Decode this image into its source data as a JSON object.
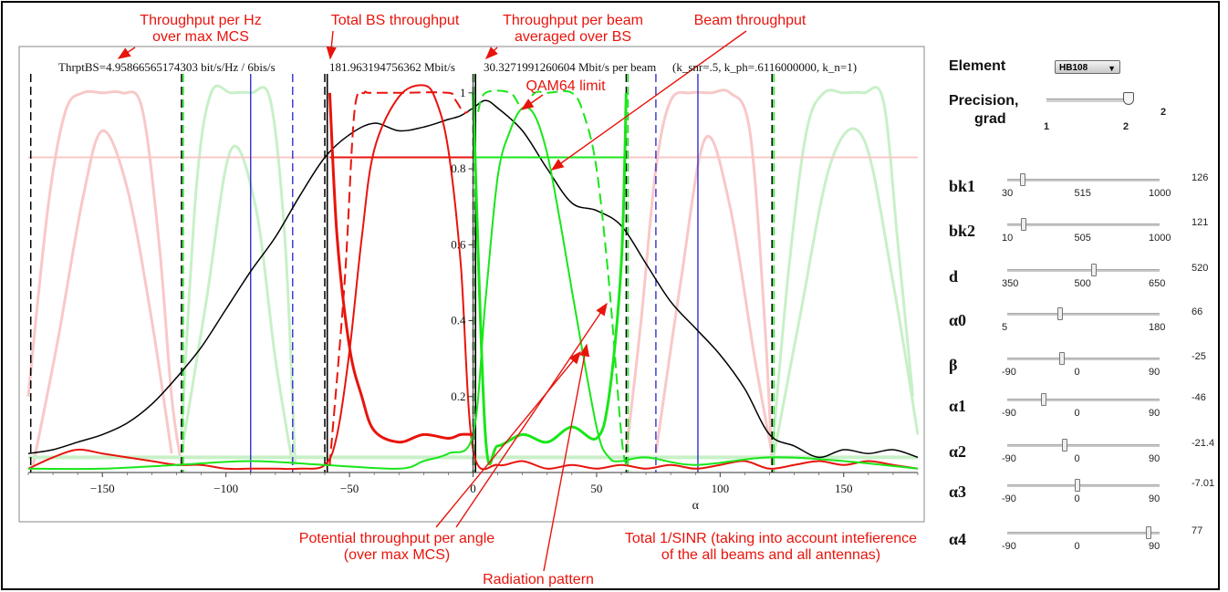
{
  "chart_data": {
    "type": "line",
    "title": "",
    "header_text": {
      "thrpt_hz": "ThrptBS=4.95866565174303 bit/s/Hz / 6bis/s",
      "bs_throughput": "181.963194756362 Mbit/s",
      "beam_throughput": "30.3271991260604 Mbit/s per beam",
      "params": "(k_snr=.5,  k_ph=.6116000000,  k_n=1)"
    },
    "xlabel": "α",
    "xlim": [
      -180,
      180
    ],
    "ylim": [
      0,
      1.05
    ],
    "x_ticks": [
      -150,
      -100,
      -50,
      0,
      50,
      100,
      150
    ],
    "y_ticks": [
      0.2,
      0.4,
      0.6,
      0.8,
      1
    ],
    "y_tick_labels": [
      "0.2",
      "0.4",
      "0.6",
      "0.8",
      "1"
    ],
    "x_tick_labels": [
      "−150",
      "−100",
      "−50",
      "0",
      "50",
      "100",
      "150"
    ],
    "grid": false,
    "colors": {
      "total_throughput": "#000000",
      "red_beam": "#e8140c",
      "green_beam": "#19e619",
      "blue_lines": "#2222cc",
      "faded_red": "#f8c8c8",
      "faded_green": "#c8f0c8"
    },
    "series": [
      {
        "name": "Potential throughput per angle (over max MCS)",
        "color": "#000000",
        "x": [
          -180,
          -170,
          -160,
          -150,
          -140,
          -130,
          -120,
          -110,
          -100,
          -90,
          -80,
          -70,
          -60,
          -50,
          -40,
          -30,
          -20,
          -10,
          -5,
          0,
          5,
          10,
          20,
          30,
          40,
          50,
          60,
          70,
          80,
          90,
          100,
          110,
          120,
          130,
          140,
          150,
          160,
          170,
          180
        ],
        "y": [
          0.05,
          0.06,
          0.08,
          0.1,
          0.13,
          0.18,
          0.25,
          0.33,
          0.43,
          0.53,
          0.62,
          0.73,
          0.83,
          0.89,
          0.92,
          0.9,
          0.91,
          0.93,
          0.94,
          0.96,
          0.98,
          0.96,
          0.9,
          0.8,
          0.71,
          0.69,
          0.65,
          0.55,
          0.45,
          0.38,
          0.31,
          0.22,
          0.1,
          0.07,
          0.04,
          0.06,
          0.05,
          0.06,
          0.04
        ]
      },
      {
        "name": "Radiation pattern (red beam)",
        "color": "#e8140c",
        "x": [
          -180,
          -170,
          -160,
          -150,
          -140,
          -130,
          -120,
          -110,
          -100,
          -90,
          -80,
          -70,
          -60,
          -55,
          -50,
          -45,
          -40,
          -30,
          -20,
          -15,
          -10,
          -5,
          0,
          10,
          20,
          30,
          40,
          50,
          60,
          70,
          80,
          90,
          100,
          110,
          120,
          130,
          140,
          150,
          160,
          170,
          180
        ],
        "y": [
          0.01,
          0.04,
          0.06,
          0.05,
          0.04,
          0.03,
          0.02,
          0.02,
          0.01,
          0.01,
          0.01,
          0.01,
          0.02,
          0.1,
          0.32,
          0.62,
          0.85,
          0.99,
          1.02,
          0.98,
          0.85,
          0.55,
          0.06,
          0.02,
          0.03,
          0.01,
          0.02,
          0.01,
          0.02,
          0.01,
          0.02,
          0.01,
          0.02,
          0.03,
          0.01,
          0.02,
          0.03,
          0.02,
          0.03,
          0.02,
          0.01
        ]
      },
      {
        "name": "Radiation pattern (green beam)",
        "color": "#19e619",
        "x": [
          -180,
          -150,
          -120,
          -90,
          -60,
          -30,
          -20,
          -10,
          0,
          5,
          10,
          15,
          20,
          25,
          30,
          35,
          40,
          50,
          55,
          60,
          70,
          90,
          120,
          150,
          180
        ],
        "y": [
          0.01,
          0.01,
          0.02,
          0.03,
          0.02,
          0.01,
          0.03,
          0.05,
          0.1,
          0.45,
          0.78,
          0.9,
          0.96,
          0.94,
          0.84,
          0.67,
          0.48,
          0.12,
          0.04,
          0.03,
          0.04,
          0.02,
          0.04,
          0.03,
          0.01
        ]
      },
      {
        "name": "Total 1/SINR (red beam)",
        "color": "#e8140c",
        "x": [
          -58,
          -55,
          -50,
          -45,
          -40,
          -30,
          -20,
          -10,
          -5,
          0
        ],
        "y": [
          1.0,
          0.62,
          0.33,
          0.2,
          0.11,
          0.08,
          0.1,
          0.09,
          0.1,
          0.1
        ]
      },
      {
        "name": "Total 1/SINR (green beam)",
        "color": "#19e619",
        "x": [
          0,
          5,
          10,
          20,
          30,
          40,
          50,
          55,
          60,
          62
        ],
        "y": [
          1.0,
          0.1,
          0.07,
          0.1,
          0.08,
          0.12,
          0.09,
          0.2,
          0.55,
          1.0
        ]
      },
      {
        "name": "Beam throughput (red)",
        "color": "#e8140c",
        "x": [
          -58,
          0
        ],
        "y": [
          0.83,
          0.83
        ]
      },
      {
        "name": "Beam throughput (green)",
        "color": "#19e619",
        "x": [
          0,
          62
        ],
        "y": [
          0.83,
          0.83
        ]
      },
      {
        "name": "QAM64 limit (red dashed)",
        "color": "#e8140c",
        "x": [
          -58,
          -52,
          -48,
          -44,
          -42,
          -30,
          -10,
          -7,
          -4,
          -2
        ],
        "y": [
          0.02,
          0.5,
          0.95,
          1.0,
          1.0,
          1.0,
          1.0,
          0.98,
          0.95,
          0.95
        ]
      },
      {
        "name": "QAM64 limit (green dashed)",
        "color": "#19e619",
        "x": [
          2,
          5,
          15,
          20,
          25,
          30,
          40,
          45,
          50,
          55,
          60,
          62
        ],
        "y": [
          0.95,
          1.0,
          1.0,
          0.96,
          1.0,
          1.0,
          1.0,
          0.94,
          0.8,
          0.5,
          0.1,
          0.02
        ]
      }
    ],
    "vertical_lines": {
      "black_dashed": [
        -179,
        -118,
        -60,
        0,
        62,
        121
      ],
      "green_dashed": [
        -118,
        0,
        62,
        121
      ],
      "blue_dashed": [
        -73,
        74
      ],
      "blue_solid": [
        -90,
        91
      ],
      "black_solid": [
        -59,
        1
      ]
    },
    "annotations": [
      {
        "text": "Throughput per Hz\nover max MCS"
      },
      {
        "text": "Total BS throughput"
      },
      {
        "text": "Throughput per beam\naveraged over BS"
      },
      {
        "text": "Beam throughput"
      },
      {
        "text": "QAM64 limit"
      },
      {
        "text": "Potential throughput per angle\n(over max MCS)"
      },
      {
        "text": "Total 1/SINR (taking into account intefierence\nof the all beams and all antennas)"
      },
      {
        "text": "Radiation pattern"
      }
    ]
  },
  "controls": {
    "element": {
      "label": "Element",
      "value": "HB108"
    },
    "precision": {
      "label1": "Precision,",
      "label2": "grad",
      "min_label": "1",
      "max_label": "2",
      "value": "2",
      "fraction": 1.0
    },
    "sliders": [
      {
        "label": "bk1",
        "ticks": [
          "30",
          "515",
          "1000"
        ],
        "value": "126",
        "fraction": 0.1
      },
      {
        "label": "bk2",
        "ticks": [
          "10",
          "505",
          "1000"
        ],
        "value": "121",
        "fraction": 0.11
      },
      {
        "label": "d",
        "ticks": [
          "350",
          "500",
          "650"
        ],
        "value": "520",
        "fraction": 0.57
      },
      {
        "label": "α0",
        "ticks": [
          "5",
          "180"
        ],
        "value": "66",
        "fraction": 0.35
      },
      {
        "label": "β",
        "ticks": [
          "-90",
          "0",
          "90"
        ],
        "value": "-25",
        "fraction": 0.36
      },
      {
        "label": "α1",
        "ticks": [
          "-90",
          "0",
          "90"
        ],
        "value": "-46",
        "fraction": 0.24
      },
      {
        "label": "α2",
        "ticks": [
          "-90",
          "0",
          "90"
        ],
        "value": "-21.4",
        "fraction": 0.38
      },
      {
        "label": "α3",
        "ticks": [
          "-90",
          "0",
          "90"
        ],
        "value": "-7.01",
        "fraction": 0.46
      },
      {
        "label": "α4",
        "ticks": [
          "-90",
          "0",
          "90"
        ],
        "value": "77",
        "fraction": 0.93
      }
    ]
  }
}
